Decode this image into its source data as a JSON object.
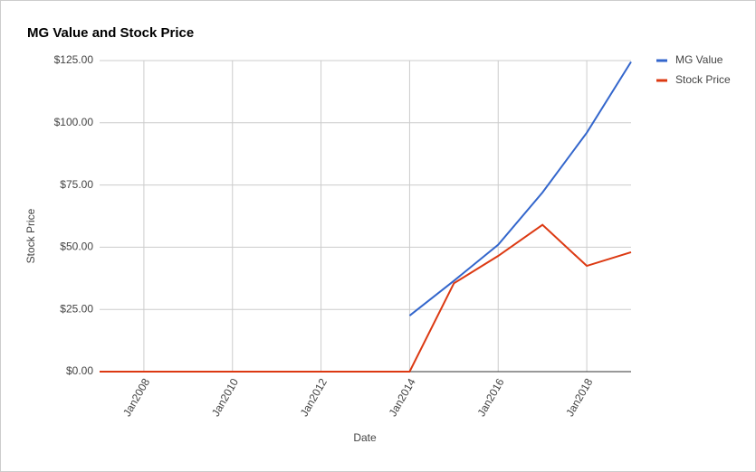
{
  "chart_data": {
    "type": "line",
    "title": "MG Value and Stock Price",
    "x_label": "Date",
    "y_label": "Stock Price",
    "x": [
      "2007-01",
      "2008-01",
      "2009-01",
      "2010-01",
      "2011-01",
      "2012-01",
      "2013-01",
      "2014-01",
      "2015-01",
      "2016-01",
      "2017-01",
      "2018-01",
      "2019-01"
    ],
    "series": [
      {
        "name": "MG Value",
        "color": "#3366cc",
        "values": [
          null,
          null,
          null,
          null,
          null,
          null,
          null,
          22.5,
          36.5,
          51,
          72,
          96,
          124.5
        ]
      },
      {
        "name": "Stock Price",
        "color": "#dc3912",
        "values": [
          0,
          0,
          0,
          0,
          0,
          0,
          0,
          0,
          35.5,
          46.5,
          59,
          42.5,
          48
        ]
      }
    ],
    "xlim": [
      "2007-01",
      "2019-01"
    ],
    "xticks": [
      {
        "value": "2008-01",
        "label": "Jan2008"
      },
      {
        "value": "2010-01",
        "label": "Jan2010"
      },
      {
        "value": "2012-01",
        "label": "Jan2012"
      },
      {
        "value": "2014-01",
        "label": "Jan2014"
      },
      {
        "value": "2016-01",
        "label": "Jan2016"
      },
      {
        "value": "2018-01",
        "label": "Jan2018"
      }
    ],
    "ylim": [
      0,
      125
    ],
    "yticks": [
      {
        "value": 0,
        "label": "$0.00"
      },
      {
        "value": 25,
        "label": "$25.00"
      },
      {
        "value": 50,
        "label": "$50.00"
      },
      {
        "value": 75,
        "label": "$75.00"
      },
      {
        "value": 100,
        "label": "$100.00"
      },
      {
        "value": 125,
        "label": "$125.00"
      }
    ],
    "grid": true,
    "legend": "right"
  }
}
